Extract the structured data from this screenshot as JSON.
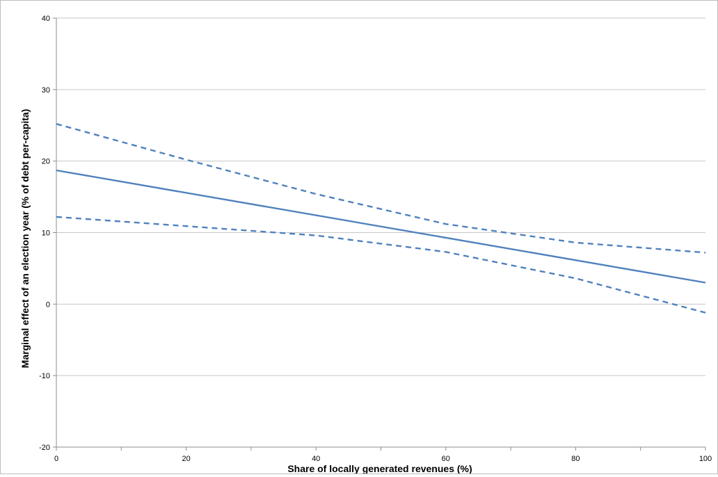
{
  "chart_data": {
    "type": "line",
    "title": "",
    "xlabel": "Share of locally generated revenues (%)",
    "ylabel": "Marginal effect of an election year (% of debt per-capita)",
    "xlim": [
      0,
      100
    ],
    "ylim": [
      -20,
      40
    ],
    "x_ticks": [
      0,
      20,
      40,
      60,
      80,
      100
    ],
    "y_ticks": [
      -20,
      -10,
      0,
      10,
      20,
      30,
      40
    ],
    "grid": true,
    "legend": "none",
    "series": [
      {
        "style": "solid",
        "color": "#4f81bd",
        "points": [
          [
            0,
            18.7
          ],
          [
            100,
            3.0
          ]
        ]
      },
      {
        "style": "dashed",
        "color": "#4f81bd",
        "points": [
          [
            0,
            25.2
          ],
          [
            20,
            20.2
          ],
          [
            40,
            15.4
          ],
          [
            60,
            11.2
          ],
          [
            80,
            8.6
          ],
          [
            100,
            7.2
          ]
        ]
      },
      {
        "style": "dashed",
        "color": "#4f81bd",
        "points": [
          [
            0,
            12.2
          ],
          [
            20,
            10.9
          ],
          [
            40,
            9.6
          ],
          [
            60,
            7.3
          ],
          [
            80,
            3.6
          ],
          [
            100,
            -1.2
          ]
        ]
      }
    ]
  }
}
